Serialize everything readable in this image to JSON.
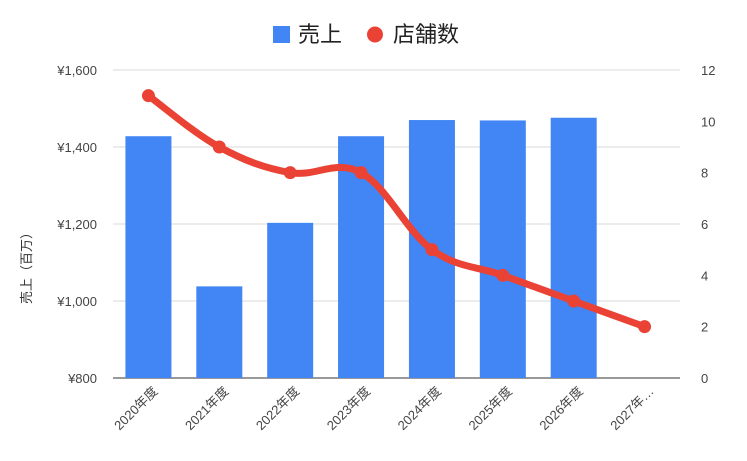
{
  "chart_data": {
    "type": "bar",
    "categories": [
      "2020年度",
      "2021年度",
      "2022年度",
      "2023年度",
      "2024年度",
      "2025年度",
      "2026年度",
      "2027年…"
    ],
    "series": [
      {
        "name": "売上",
        "type": "bar",
        "axis": "left",
        "color": "#4285f4",
        "values": [
          1428,
          1038,
          1203,
          1428,
          1470,
          1469,
          1476,
          null
        ]
      },
      {
        "name": "店舗数",
        "type": "line",
        "axis": "right",
        "color": "#ea4335",
        "values": [
          11,
          9,
          8,
          8,
          5,
          4,
          3,
          2
        ]
      }
    ],
    "ylabel": "売上（百万）",
    "ylim": [
      800,
      1600
    ],
    "y2lim": [
      0,
      12
    ],
    "yticks": [
      "¥800",
      "¥1,000",
      "¥1,200",
      "¥1,400",
      "¥1,600"
    ],
    "y2ticks": [
      "0",
      "2",
      "4",
      "6",
      "8",
      "10",
      "12"
    ],
    "legend_position": "top-center",
    "grid": true
  }
}
